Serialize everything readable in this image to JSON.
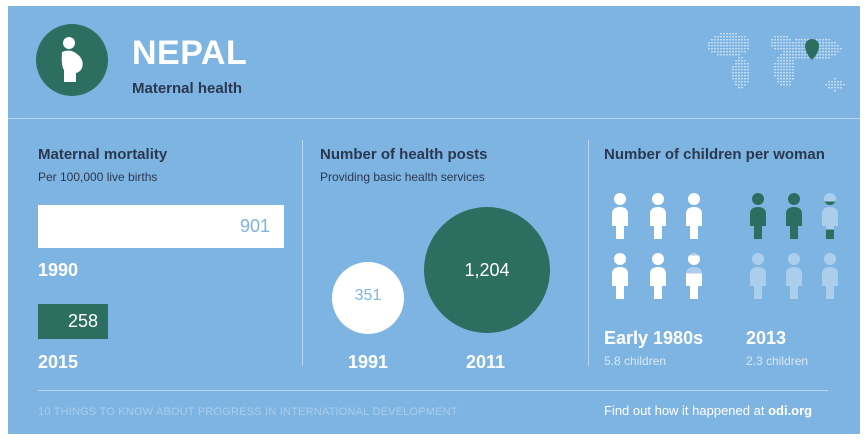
{
  "header": {
    "title": "NEPAL",
    "subtitle": "Maternal health",
    "logo_icon": "pregnant-woman-icon",
    "map_icon": "world-map-icon",
    "marker_icon": "location-pin-icon"
  },
  "colors": {
    "background": "#7eb4e2",
    "accent": "#2c6e5f",
    "text_dark": "#29384f",
    "white": "#ffffff"
  },
  "maternal_mortality": {
    "title": "Maternal mortality",
    "subtitle": "Per 100,000 live births",
    "bars": [
      {
        "year": "1990",
        "value": 901,
        "label": "901"
      },
      {
        "year": "2015",
        "value": 258,
        "label": "258"
      }
    ]
  },
  "health_posts": {
    "title": "Number of health posts",
    "subtitle": "Providing basic health services",
    "circles": [
      {
        "year": "1991",
        "value": 351,
        "label": "351"
      },
      {
        "year": "2011",
        "value": 1204,
        "label": "1,204"
      }
    ]
  },
  "children": {
    "title": "Number of children per woman",
    "groups": [
      {
        "period": "Early 1980s",
        "caption": "5.8 children",
        "value": 5.8
      },
      {
        "period": "2013",
        "caption": "2.3 children",
        "value": 2.3
      }
    ],
    "person_icon": "child-figure-icon"
  },
  "footer": {
    "left": "10 THINGS TO KNOW ABOUT PROGRESS IN INTERNATIONAL DEVELOPMENT",
    "right_prefix": "Find out how it happened at",
    "right_link": "odi.org"
  }
}
